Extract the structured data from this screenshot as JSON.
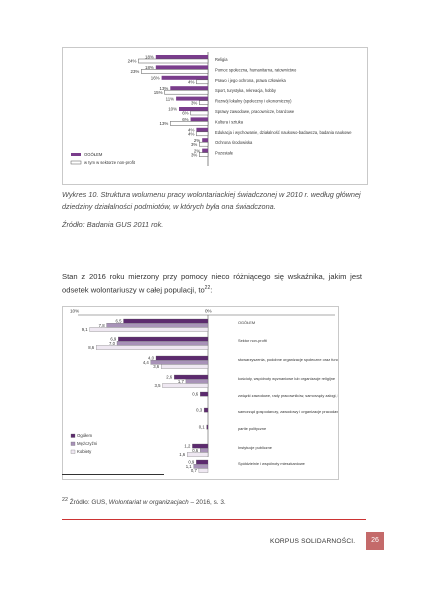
{
  "chart_data": [
    {
      "type": "bar",
      "orientation": "horizontal",
      "categories": [
        "Religia",
        "Pomoc społeczna, humanitarna, ratownictwo",
        "Prawo i jego ochrona, prawa człowieka",
        "Sport, turystyka, rekreacja, hobby",
        "Rozwój lokalny (społeczny i ekonomiczny)",
        "Sprawy zawodowe, pracownicze, branżowe",
        "Kultura i sztuka",
        "Edukacja i wychowanie, działalność naukowo-badawcza, badania naukowe",
        "Ochrona środowiska",
        "Pozostałe"
      ],
      "series": [
        {
          "name": "OGÓŁEM",
          "values": [
            18,
            18,
            16,
            13,
            11,
            10,
            6,
            4,
            2,
            2
          ],
          "labels": [
            "18%",
            "18%",
            "16%",
            "13%",
            "11%",
            "10%",
            "6%",
            "4%",
            "2%",
            "2%"
          ]
        },
        {
          "name": "w tym w sektorze non-profit",
          "values": [
            24,
            23,
            4,
            15,
            3,
            6,
            13,
            4,
            3,
            3
          ],
          "labels": [
            "24%",
            "23%",
            "4%",
            "15%",
            "3%",
            "6%",
            "13%",
            "4%",
            "3%",
            "3%"
          ]
        }
      ],
      "colors": {
        "ogolem": "#7a3d8c",
        "nonprofit": "#ffffff"
      }
    },
    {
      "type": "bar",
      "orientation": "horizontal",
      "axis_labels": [
        "10%",
        "0%"
      ],
      "categories": [
        "OGÓŁEM",
        "Sektor non-profit",
        "stowarzyszenia, podobne organizacje społeczne oraz fundacje",
        "kościoły, wspólnoty wyznaniowe lub organizacje religijne",
        "związki zawodowe, rady pracowników, samorządy załogi, kasy zapomogowo-pożyczkowe",
        "samorząd gospodarczy, zawodowy i organizacje pracodawców",
        "partie polityczne",
        "Instytucje publiczne",
        "Spółdzielnie i wspólnoty mieszkaniowe"
      ],
      "series": [
        {
          "name": "Ogółem",
          "values": [
            6.5,
            6.9,
            4.0,
            2.6,
            0.6,
            0.3,
            0.1,
            1.2,
            0.9
          ],
          "labels": [
            "6,5",
            "6,9",
            "4,0",
            "2,6",
            "0,6",
            "0,3",
            "0,1",
            "1,2",
            "0,9"
          ]
        },
        {
          "name": "Mężczyźni",
          "values": [
            7.8,
            7.0,
            4.4,
            1.7,
            null,
            null,
            null,
            0.6,
            1.1
          ],
          "labels": [
            "7,8",
            "7,0",
            "4,4",
            "1,7",
            "",
            "",
            "",
            "0,6",
            "1,1"
          ]
        },
        {
          "name": "Kobiety",
          "values": [
            9.1,
            8.6,
            3.6,
            3.5,
            null,
            null,
            null,
            1.6,
            0.7
          ],
          "labels": [
            "9,1",
            "8,6",
            "3,6",
            "3,5",
            "",
            "",
            "",
            "1,6",
            "0,7"
          ]
        }
      ],
      "colors": {
        "ogolem": "#5c2a6e",
        "mezczyzni": "#a892b8",
        "kobiety": "#efe8f2"
      }
    }
  ],
  "caption1": "Wykres 10. Struktura wolumenu pracy wolontariackiej świadczonej w 2010 r. według głównej dziedziny działalności podmiotów, w których była ona świadczona.",
  "source1": "Źródło: Badania GUS 2011 rok.",
  "paragraph": "Stan z 2016 roku mierzony przy pomocy nieco różniącego się wskaźnika, jakim jest odsetek wolontariuszy w całej populacji, to",
  "paragraph_sup": "22",
  "footnote_num": "22",
  "footnote_prefix": "Źródło: GUS,",
  "footnote_title": "Wolontariat w organizacjach",
  "footnote_suffix": "– 2016, s. 3.",
  "footer_text": "KORPUS SOLIDARNOŚCI.",
  "page_number": "26"
}
